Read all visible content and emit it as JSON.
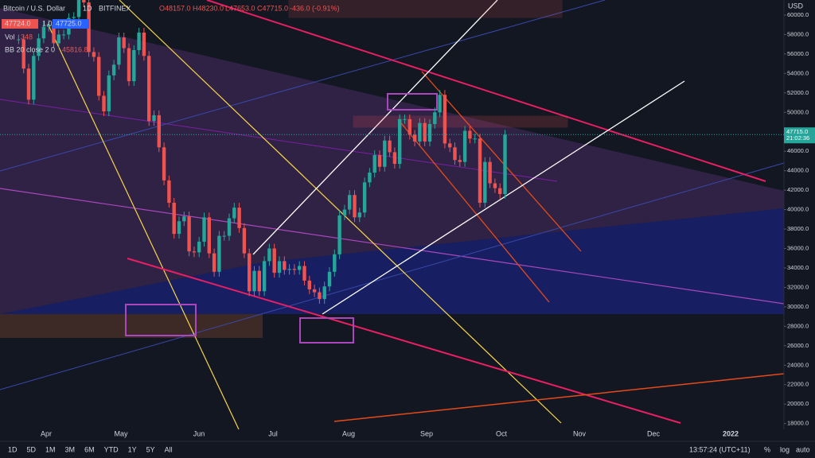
{
  "chart_data": {
    "type": "candlestick",
    "title": "Bitcoin / U.S. Dollar",
    "interval": "1D",
    "exchange": "BITFINEX",
    "ohlc": [
      "O48157.0",
      "H48230.0",
      "L47653.0",
      "C47715.0",
      "-436.0 (-0.91%)"
    ],
    "order_prices": [
      "47724.0",
      "1.0",
      "47725.0"
    ],
    "indicators": [
      {
        "name": "Vol",
        "value": "348"
      },
      {
        "name": "BB 20 close 2 0",
        "value": "45816.8"
      }
    ],
    "currency": "USD",
    "last_price": {
      "value": 47715,
      "label": "47715.0"
    },
    "countdown": "21:02:36",
    "ylim": [
      17400,
      61550
    ],
    "yticks": [
      {
        "value": 18000,
        "label": "18000.0"
      },
      {
        "value": 20000,
        "label": "20000.0"
      },
      {
        "value": 22000,
        "label": "22000.0"
      },
      {
        "value": 24000,
        "label": "24000.0"
      },
      {
        "value": 26000,
        "label": "26000.0"
      },
      {
        "value": 28000,
        "label": "28000.0"
      },
      {
        "value": 30000,
        "label": "30000.0"
      },
      {
        "value": 32000,
        "label": "32000.0"
      },
      {
        "value": 34000,
        "label": "34000.0"
      },
      {
        "value": 36000,
        "label": "36000.0"
      },
      {
        "value": 38000,
        "label": "38000.0"
      },
      {
        "value": 40000,
        "label": "40000.0"
      },
      {
        "value": 42000,
        "label": "42000.0"
      },
      {
        "value": 44000,
        "label": "44000.0"
      },
      {
        "value": 46000,
        "label": "46000.0"
      },
      {
        "value": 48000,
        "label": "48000.0"
      },
      {
        "value": 50000,
        "label": "50000.0"
      },
      {
        "value": 52000,
        "label": "52000.0"
      },
      {
        "value": 54000,
        "label": "54000.0"
      },
      {
        "value": 56000,
        "label": "56000.0"
      },
      {
        "value": 58000,
        "label": "58000.0"
      },
      {
        "value": 60000,
        "label": "60000.0"
      }
    ],
    "xticks": [
      "Apr",
      "May",
      "Jun",
      "Jul",
      "Aug",
      "Sep",
      "Oct",
      "Nov",
      "Dec",
      "2022"
    ],
    "up_color": "#26a69a",
    "down_color": "#ef5350",
    "closes": [
      57500,
      54500,
      51300,
      55800,
      57600,
      58800,
      59000,
      57100,
      58000,
      58000,
      59700,
      59800,
      63000,
      61300,
      56200,
      55700,
      51700,
      50100,
      53800,
      54900,
      57700,
      56600,
      53200,
      56400,
      58200,
      55800,
      49100,
      49700,
      46400,
      43000,
      40700,
      37500,
      38800,
      39300,
      35700,
      35600,
      36700,
      39200,
      35500,
      33600,
      37300,
      37300,
      39100,
      40200,
      38100,
      35500,
      31600,
      33700,
      31600,
      34700,
      36000,
      33500,
      34700,
      33800,
      33900,
      33800,
      34200,
      32700,
      31800,
      31500,
      30800,
      32100,
      33600,
      35400,
      39400,
      40000,
      41500,
      39200,
      39700,
      42800,
      43800,
      45600,
      44400,
      47100,
      45900,
      44700,
      49300,
      49300,
      47700,
      47000,
      48900,
      47000,
      48800,
      50000,
      51800,
      46800,
      46400,
      45100,
      44900,
      48100,
      47300,
      47300,
      40700,
      44900,
      42700,
      42200,
      41600,
      47700
    ]
  },
  "toolbar": {
    "ranges": [
      "1D",
      "5D",
      "1M",
      "3M",
      "6M",
      "YTD",
      "1Y",
      "5Y",
      "All"
    ],
    "clock": "13:57:24 (UTC+11)",
    "options": [
      "%",
      "log",
      "auto"
    ]
  }
}
